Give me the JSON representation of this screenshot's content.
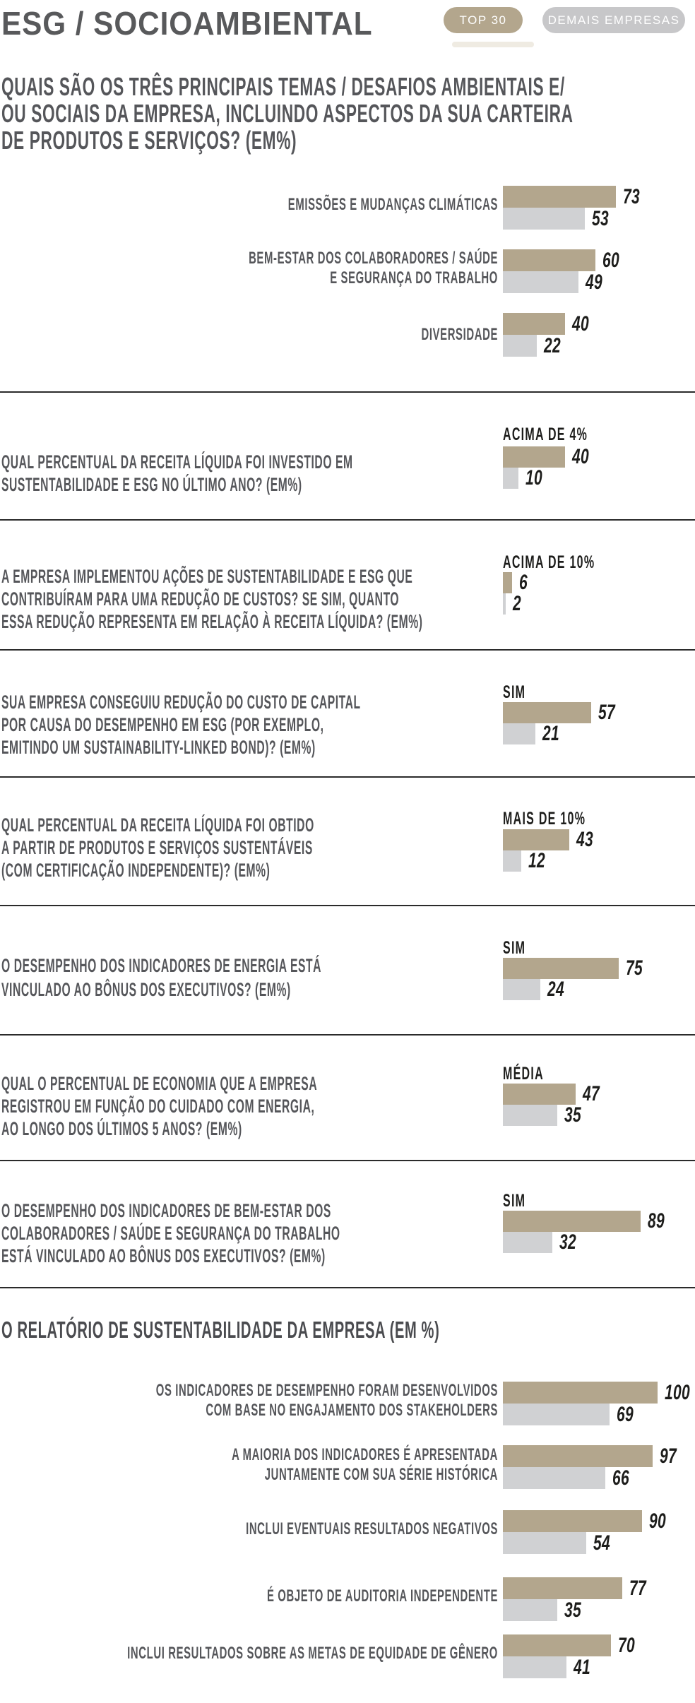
{
  "header": {
    "title": "ESG / SOCIOAMBIENTAL",
    "badges": [
      {
        "label": "TOP 30",
        "color": "#b3a68d"
      },
      {
        "label": "DEMAIS EMPRESAS",
        "color": "#c7c7c9"
      }
    ]
  },
  "colors": {
    "top30_bar": "#b3a68d",
    "demais_bar": "#d0d1d3",
    "question_text": "#55565a",
    "value_text": "#1d1d1b",
    "divider": "#2b2b2b"
  },
  "chart_data": [
    {
      "type": "bar",
      "orientation": "horizontal",
      "xlim": [
        0,
        100
      ],
      "title": "QUAIS SÃO OS TRÊS PRINCIPAIS TEMAS / DESAFIOS AMBIENTAIS E/\nOU SOCIAIS DA EMPRESA, INCLUINDO ASPECTOS DA SUA CARTEIRA\nDE PRODUTOS E SERVIÇOS? (EM%)",
      "categories": [
        "EMISSÕES E MUDANÇAS CLIMÁTICAS",
        "BEM-ESTAR DOS COLABORADORES / SAÚDE\nE SEGURANÇA DO TRABALHO",
        "DIVERSIDADE"
      ],
      "series": [
        {
          "name": "TOP 30",
          "values": [
            73,
            60,
            40
          ]
        },
        {
          "name": "DEMAIS EMPRESAS",
          "values": [
            53,
            49,
            22
          ]
        }
      ]
    },
    {
      "type": "bar",
      "orientation": "horizontal",
      "xlim": [
        0,
        100
      ],
      "title": "QUAL PERCENTUAL DA RECEITA LÍQUIDA FOI INVESTIDO EM\nSUSTENTABILIDADE E ESG NO ÚLTIMO ANO? (EM%)",
      "categories": [
        "ACIMA DE 4%"
      ],
      "series": [
        {
          "name": "TOP 30",
          "values": [
            40
          ]
        },
        {
          "name": "DEMAIS EMPRESAS",
          "values": [
            10
          ]
        }
      ]
    },
    {
      "type": "bar",
      "orientation": "horizontal",
      "xlim": [
        0,
        100
      ],
      "title": "A EMPRESA IMPLEMENTOU AÇÕES DE SUSTENTABILIDADE E ESG QUE\nCONTRIBUÍRAM PARA UMA REDUÇÃO DE CUSTOS? SE SIM, QUANTO\nESSA REDUÇÃO REPRESENTA EM RELAÇÃO À RECEITA LÍQUIDA? (EM%)",
      "categories": [
        "ACIMA DE 10%"
      ],
      "series": [
        {
          "name": "TOP 30",
          "values": [
            6
          ]
        },
        {
          "name": "DEMAIS EMPRESAS",
          "values": [
            2
          ]
        }
      ]
    },
    {
      "type": "bar",
      "orientation": "horizontal",
      "xlim": [
        0,
        100
      ],
      "title": "SUA EMPRESA CONSEGUIU REDUÇÃO DO CUSTO DE CAPITAL\nPOR CAUSA DO DESEMPENHO EM ESG (POR EXEMPLO,\nEMITINDO UM SUSTAINABILITY-LINKED BOND)? (EM%)",
      "categories": [
        "SIM"
      ],
      "series": [
        {
          "name": "TOP 30",
          "values": [
            57
          ]
        },
        {
          "name": "DEMAIS EMPRESAS",
          "values": [
            21
          ]
        }
      ]
    },
    {
      "type": "bar",
      "orientation": "horizontal",
      "xlim": [
        0,
        100
      ],
      "title": "QUAL PERCENTUAL DA RECEITA LÍQUIDA FOI OBTIDO\nA PARTIR DE PRODUTOS E SERVIÇOS SUSTENTÁVEIS\n(COM CERTIFICAÇÃO INDEPENDENTE)? (EM%)",
      "categories": [
        "MAIS DE 10%"
      ],
      "series": [
        {
          "name": "TOP 30",
          "values": [
            43
          ]
        },
        {
          "name": "DEMAIS EMPRESAS",
          "values": [
            12
          ]
        }
      ]
    },
    {
      "type": "bar",
      "orientation": "horizontal",
      "xlim": [
        0,
        100
      ],
      "title": "O DESEMPENHO DOS INDICADORES DE ENERGIA ESTÁ\nVINCULADO AO BÔNUS DOS EXECUTIVOS? (EM%)",
      "categories": [
        "SIM"
      ],
      "series": [
        {
          "name": "TOP 30",
          "values": [
            75
          ]
        },
        {
          "name": "DEMAIS EMPRESAS",
          "values": [
            24
          ]
        }
      ]
    },
    {
      "type": "bar",
      "orientation": "horizontal",
      "xlim": [
        0,
        100
      ],
      "title": "QUAL O PERCENTUAL DE ECONOMIA QUE A EMPRESA\nREGISTROU EM FUNÇÃO DO CUIDADO COM ENERGIA,\nAO LONGO DOS ÚLTIMOS 5 ANOS? (EM%)",
      "categories": [
        "MÉDIA"
      ],
      "series": [
        {
          "name": "TOP 30",
          "values": [
            47
          ]
        },
        {
          "name": "DEMAIS EMPRESAS",
          "values": [
            35
          ]
        }
      ]
    },
    {
      "type": "bar",
      "orientation": "horizontal",
      "xlim": [
        0,
        100
      ],
      "title": "O DESEMPENHO DOS INDICADORES DE BEM-ESTAR DOS\nCOLABORADORES / SAÚDE E SEGURANÇA DO TRABALHO\nESTÁ VINCULADO AO BÔNUS DOS EXECUTIVOS? (EM%)",
      "categories": [
        "SIM"
      ],
      "series": [
        {
          "name": "TOP 30",
          "values": [
            89
          ]
        },
        {
          "name": "DEMAIS EMPRESAS",
          "values": [
            32
          ]
        }
      ]
    },
    {
      "type": "bar",
      "orientation": "horizontal",
      "xlim": [
        0,
        100
      ],
      "title": "O RELATÓRIO DE SUSTENTABILIDADE DA EMPRESA (EM %)",
      "categories": [
        "OS INDICADORES DE DESEMPENHO FORAM DESENVOLVIDOS\nCOM BASE NO ENGAJAMENTO DOS STAKEHOLDERS",
        "A MAIORIA DOS INDICADORES É APRESENTADA\nJUNTAMENTE COM SUA SÉRIE HISTÓRICA",
        "INCLUI EVENTUAIS RESULTADOS NEGATIVOS",
        "É OBJETO DE AUDITORIA INDEPENDENTE",
        "INCLUI RESULTADOS SOBRE AS METAS DE EQUIDADE DE GÊNERO"
      ],
      "series": [
        {
          "name": "TOP 30",
          "values": [
            100,
            97,
            90,
            77,
            70
          ]
        },
        {
          "name": "DEMAIS EMPRESAS",
          "values": [
            69,
            66,
            54,
            35,
            41
          ]
        }
      ]
    }
  ]
}
